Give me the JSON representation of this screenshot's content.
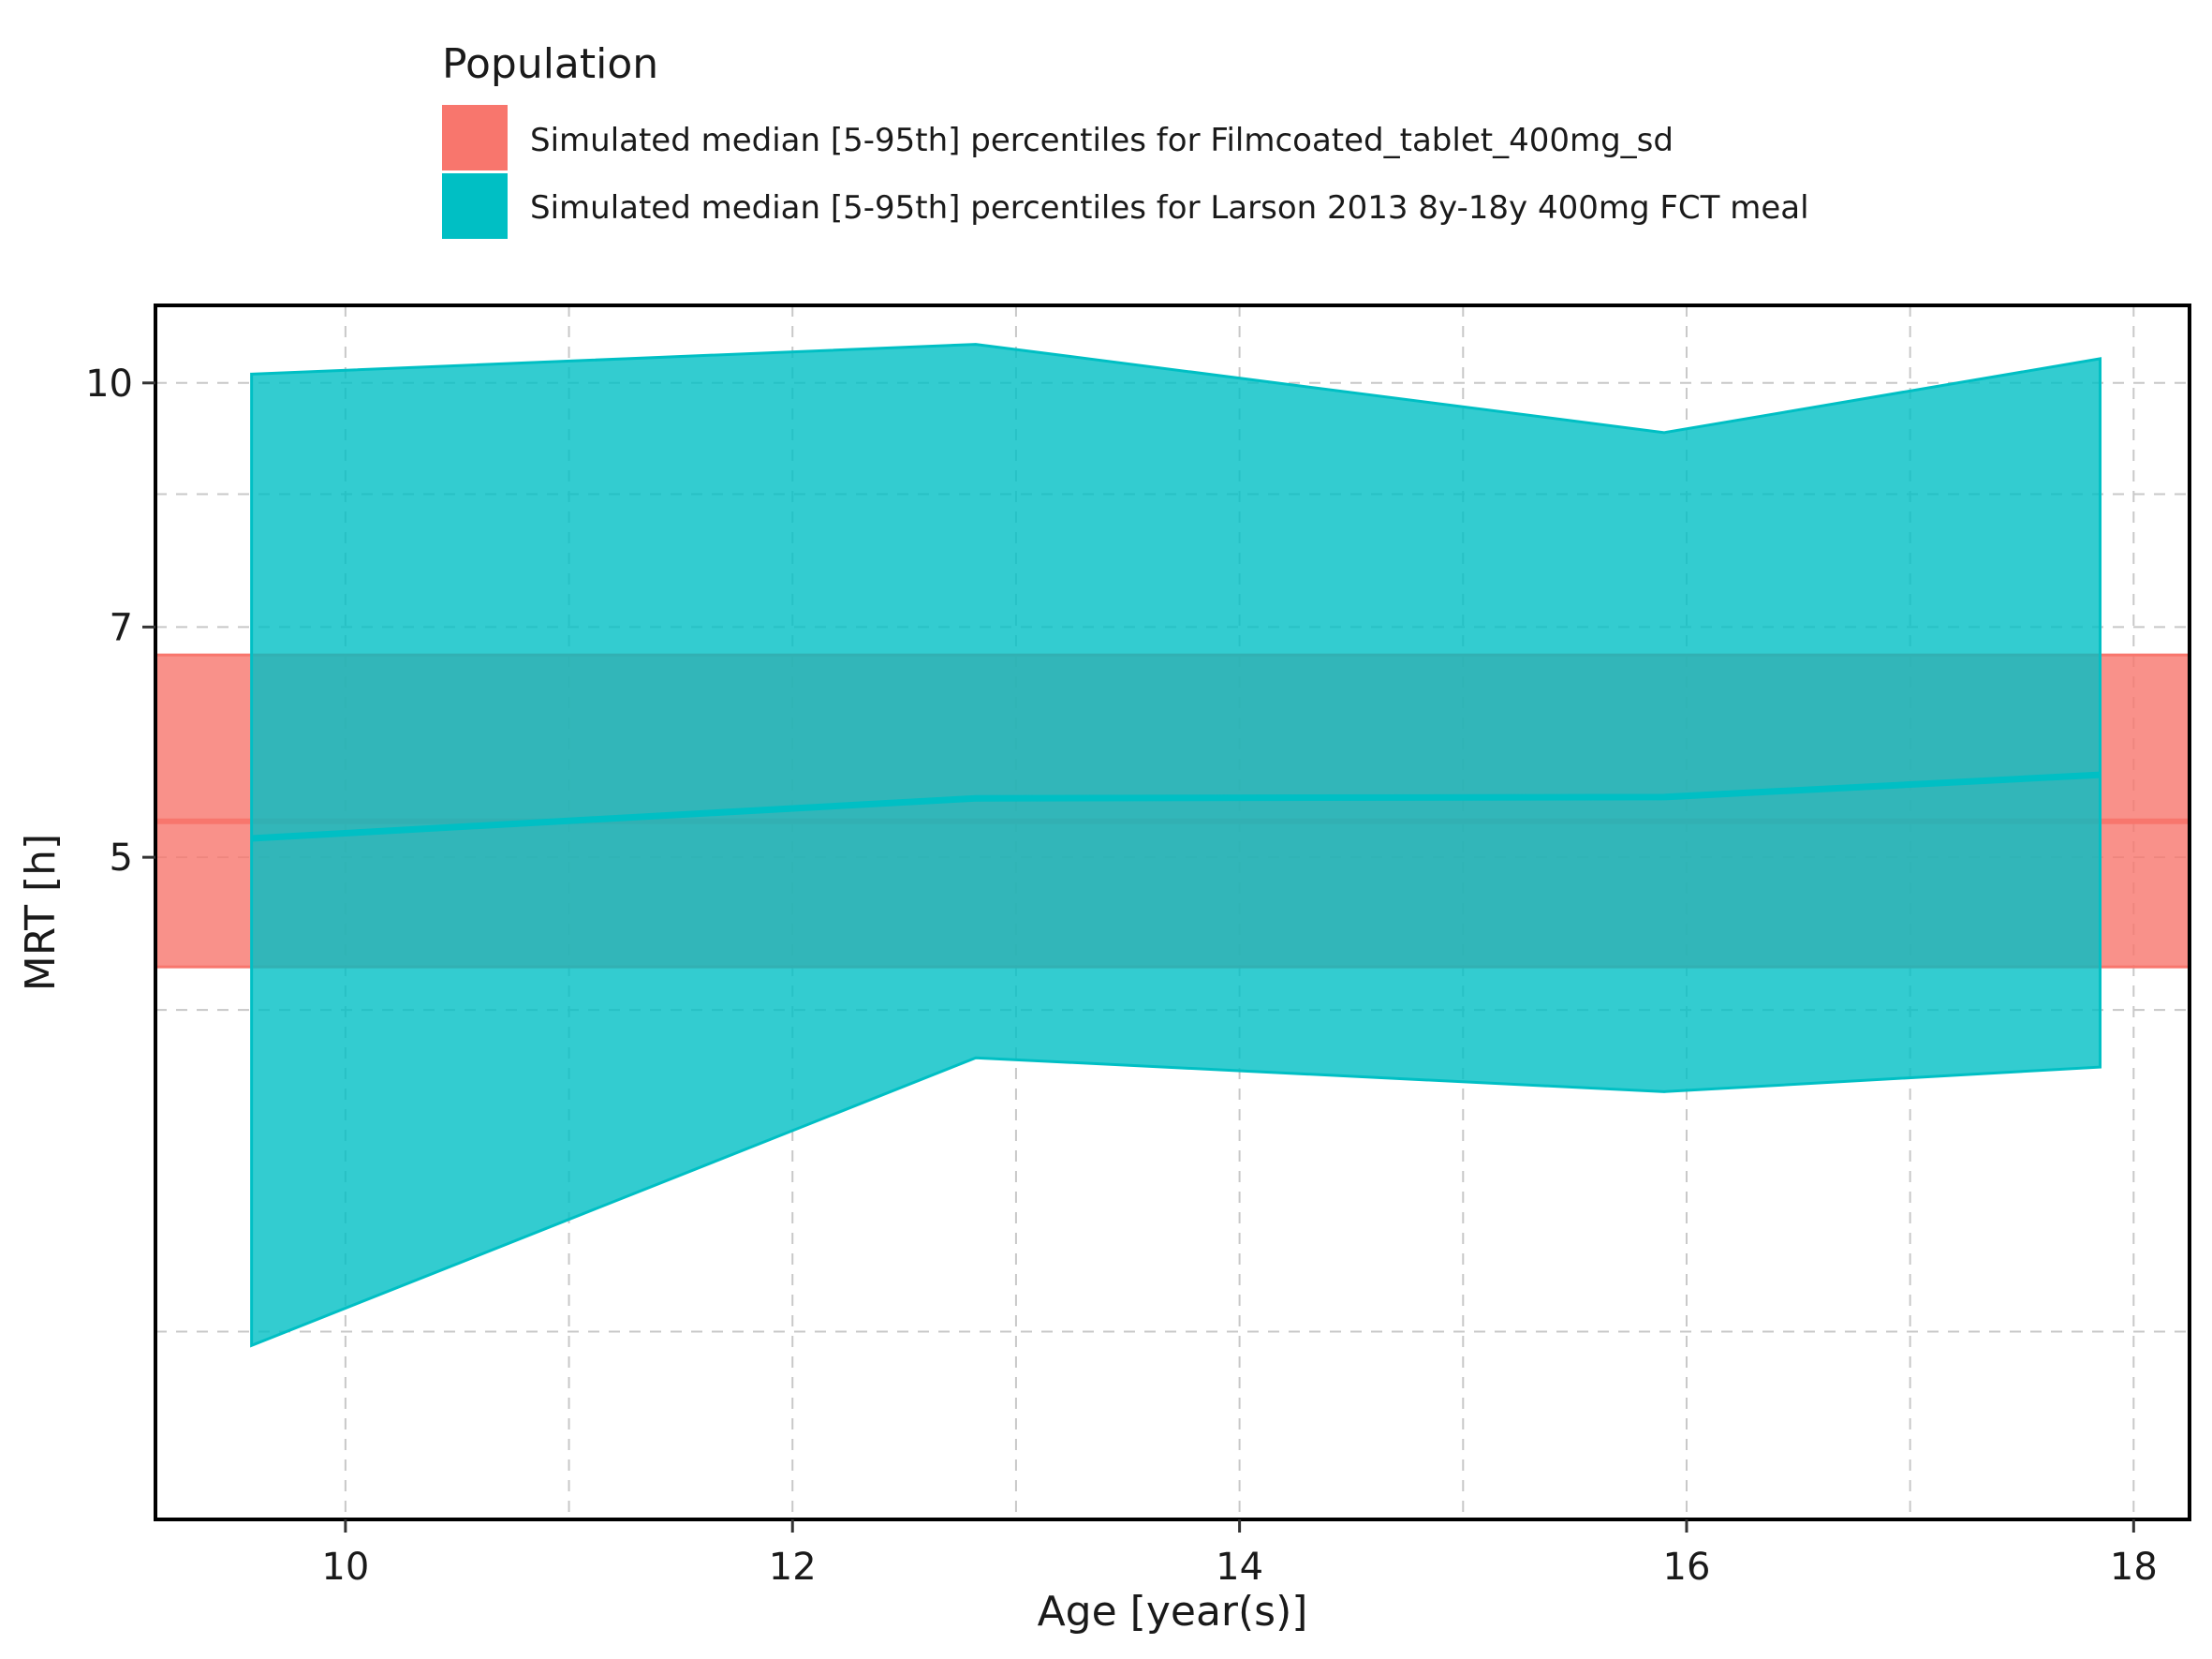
{
  "chart_data": {
    "type": "area",
    "title": "",
    "xlabel": "Age [year(s)]",
    "ylabel": "MRT [h]",
    "xlim": [
      9.15,
      18.25
    ],
    "ylim": [
      1.9,
      11.2
    ],
    "y_scale": "log",
    "x_ticks": [
      10,
      12,
      14,
      16,
      18
    ],
    "x_tick_labels": [
      "10",
      "12",
      "14",
      "16",
      "18"
    ],
    "y_ticks": [
      5,
      7,
      10
    ],
    "y_tick_labels": [
      "5",
      "7",
      "10"
    ],
    "y_minor_gridlines": [
      2.5,
      4,
      8.5
    ],
    "x_minor_gridlines": [
      11,
      13,
      15,
      17
    ],
    "grid": true,
    "legend": {
      "title": "Population",
      "placement": "top"
    },
    "series": [
      {
        "name": "Simulated median [5-95th] percentiles for Filmcoated_tablet_400mg_sd",
        "color": "#F8766D",
        "style": "horizontal-band",
        "x_range": [
          9.15,
          18.25
        ],
        "median": 5.27,
        "lower": 4.26,
        "upper": 6.72
      },
      {
        "name": "Simulated median [5-95th] percentiles for Larson 2013 8y-18y 400mg FCT meal",
        "color": "#00BFC4",
        "style": "ribbon",
        "x": [
          9.58,
          12.82,
          15.9,
          17.85
        ],
        "median": [
          5.14,
          5.45,
          5.46,
          5.64
        ],
        "lower": [
          2.45,
          3.73,
          3.55,
          3.68
        ],
        "upper": [
          10.13,
          10.58,
          9.3,
          10.36
        ]
      }
    ]
  }
}
